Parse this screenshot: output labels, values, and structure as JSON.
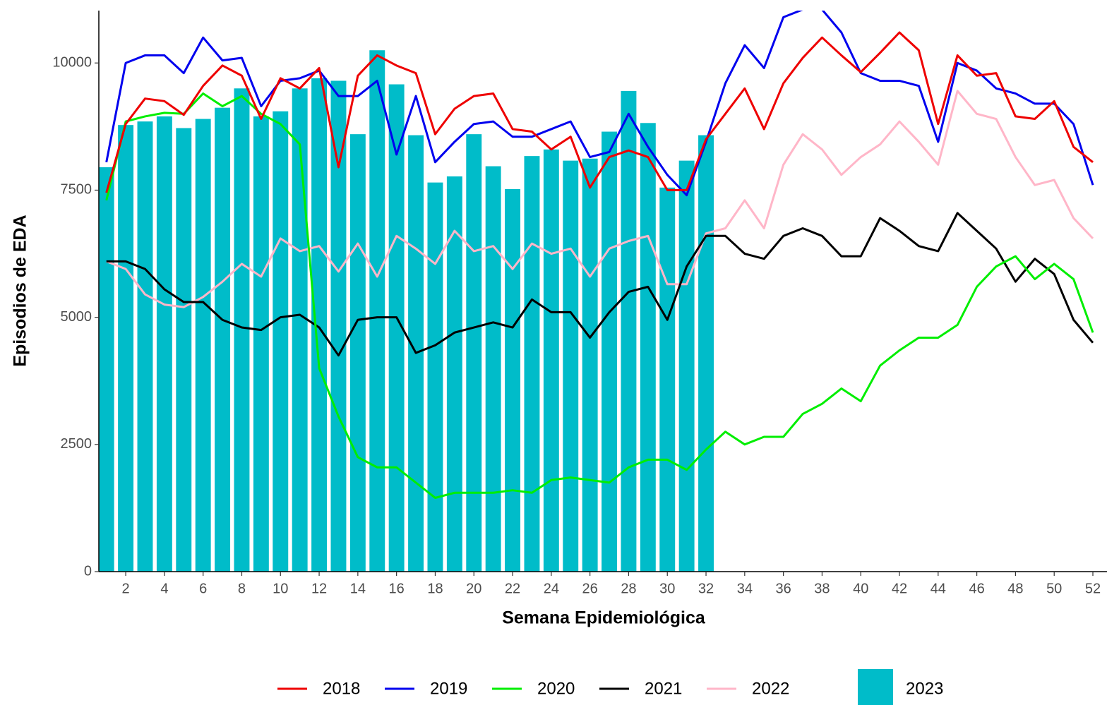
{
  "chart_data": {
    "type": "combo",
    "x_label": "Semana Epidemiológica",
    "y_label": "Episodios de EDA",
    "x": [
      1,
      2,
      3,
      4,
      5,
      6,
      7,
      8,
      9,
      10,
      11,
      12,
      13,
      14,
      15,
      16,
      17,
      18,
      19,
      20,
      21,
      22,
      23,
      24,
      25,
      26,
      27,
      28,
      29,
      30,
      31,
      32,
      33,
      34,
      35,
      36,
      37,
      38,
      39,
      40,
      41,
      42,
      43,
      44,
      45,
      46,
      47,
      48,
      49,
      50,
      51,
      52
    ],
    "xlim": [
      0.61,
      52.73
    ],
    "ylim": [
      0,
      11030
    ],
    "xticks": [
      2,
      4,
      6,
      8,
      10,
      12,
      14,
      16,
      18,
      20,
      22,
      24,
      26,
      28,
      30,
      32,
      34,
      36,
      38,
      40,
      42,
      44,
      46,
      48,
      50,
      52
    ],
    "yticks": [
      0,
      2500,
      5000,
      7500,
      10000
    ],
    "series": [
      {
        "name": "2023",
        "type": "bar",
        "color": "#00bcc9",
        "values": [
          7950,
          8780,
          8850,
          8950,
          8720,
          8900,
          9120,
          9500,
          8950,
          9050,
          9500,
          9700,
          9650,
          8600,
          10250,
          9580,
          8580,
          7650,
          7770,
          8600,
          7970,
          7520,
          8170,
          8300,
          8080,
          8120,
          8650,
          9450,
          8820,
          7550,
          8080,
          8580,
          null,
          null,
          null,
          null,
          null,
          null,
          null,
          null,
          null,
          null,
          null,
          null,
          null,
          null,
          null,
          null,
          null,
          null,
          null,
          null
        ]
      },
      {
        "name": "2022",
        "type": "line",
        "color": "#ffb6c8",
        "values": [
          6100,
          5950,
          5450,
          5250,
          5200,
          5400,
          5700,
          6050,
          5800,
          6550,
          6300,
          6400,
          5900,
          6450,
          5800,
          6600,
          6350,
          6050,
          6700,
          6300,
          6400,
          5950,
          6450,
          6250,
          6350,
          5800,
          6350,
          6500,
          6600,
          5650,
          5650,
          6650,
          6750,
          7300,
          6750,
          8000,
          8600,
          8300,
          7800,
          8150,
          8400,
          8850,
          8450,
          8000,
          9450,
          9000,
          8900,
          8150,
          7600,
          7700,
          6950,
          6550
        ]
      },
      {
        "name": "2021",
        "type": "line",
        "color": "#000000",
        "values": [
          6100,
          6100,
          5950,
          5550,
          5300,
          5300,
          4950,
          4800,
          4750,
          5000,
          5050,
          4800,
          4250,
          4950,
          5000,
          5000,
          4300,
          4450,
          4700,
          4800,
          4900,
          4800,
          5350,
          5100,
          5100,
          4600,
          5100,
          5500,
          5600,
          4950,
          6000,
          6600,
          6600,
          6250,
          6150,
          6600,
          6750,
          6600,
          6200,
          6200,
          6950,
          6700,
          6400,
          6300,
          7050,
          6700,
          6350,
          5700,
          6150,
          5850,
          4950,
          4500
        ]
      },
      {
        "name": "2020",
        "type": "line",
        "color": "#00ee00",
        "values": [
          7300,
          8850,
          8950,
          9020,
          9000,
          9400,
          9150,
          9350,
          9000,
          8800,
          8400,
          4000,
          3050,
          2250,
          2050,
          2050,
          1750,
          1450,
          1550,
          1550,
          1550,
          1600,
          1550,
          1800,
          1850,
          1800,
          1750,
          2050,
          2200,
          2200,
          2000,
          2400,
          2750,
          2500,
          2650,
          2650,
          3100,
          3300,
          3600,
          3350,
          4050,
          4350,
          4600,
          4600,
          4850,
          5600,
          6000,
          6200,
          5750,
          6050,
          5750,
          4700
        ]
      },
      {
        "name": "2019",
        "type": "line",
        "color": "#0000ee",
        "values": [
          8050,
          10000,
          10150,
          10150,
          9800,
          10500,
          10050,
          10100,
          9150,
          9650,
          9700,
          9850,
          9350,
          9350,
          9650,
          8200,
          9350,
          8050,
          8450,
          8800,
          8850,
          8550,
          8550,
          8700,
          8850,
          8150,
          8250,
          9000,
          8350,
          7800,
          7400,
          8450,
          9600,
          10350,
          9900,
          10900,
          11050,
          11050,
          10600,
          9800,
          9650,
          9650,
          9550,
          8450,
          10000,
          9850,
          9500,
          9400,
          9200,
          9200,
          8800,
          7600
        ]
      },
      {
        "name": "2018",
        "type": "line",
        "color": "#ee0000",
        "values": [
          7450,
          8800,
          9300,
          9250,
          8980,
          9550,
          9950,
          9750,
          8900,
          9700,
          9500,
          9900,
          7950,
          9750,
          10150,
          9950,
          9800,
          8600,
          9100,
          9350,
          9400,
          8700,
          8650,
          8300,
          8550,
          7550,
          8150,
          8280,
          8150,
          7500,
          7500,
          8500,
          9000,
          9500,
          8700,
          9600,
          10100,
          10500,
          10150,
          9820,
          10200,
          10600,
          10250,
          8800,
          10150,
          9750,
          9800,
          8950,
          8900,
          9250,
          8350,
          8050
        ]
      }
    ]
  }
}
